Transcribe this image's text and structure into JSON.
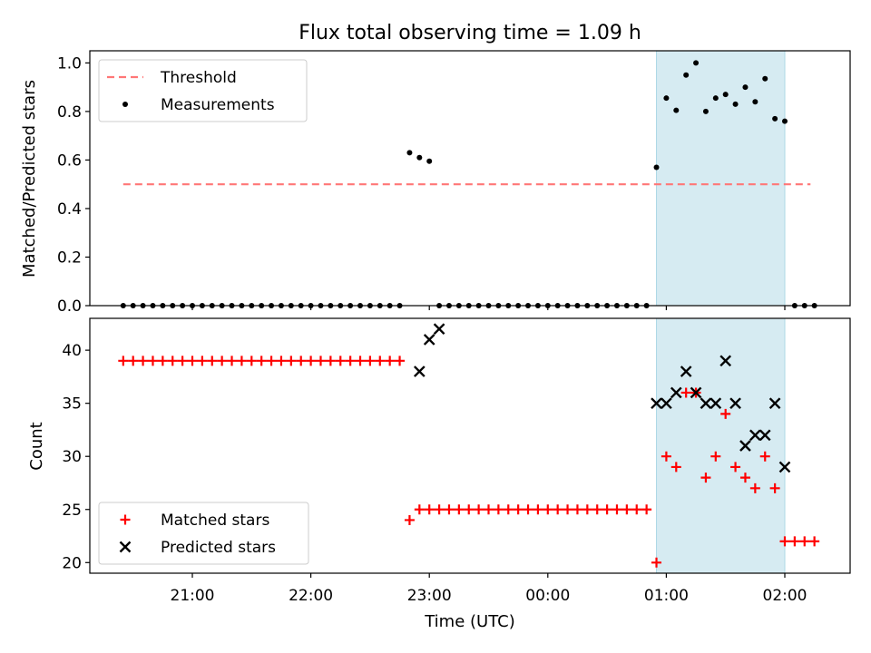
{
  "figure": {
    "title": "Flux total observing time = 1.09 h",
    "xlabel": "Time (UTC)",
    "x_ticks": [
      "21:00",
      "22:00",
      "23:00",
      "00:00",
      "01:00",
      "02:00"
    ]
  },
  "chart_data": [
    {
      "type": "scatter",
      "ylabel": "Matched/Predicted stars",
      "ylim": [
        0,
        1.05
      ],
      "y_ticks": [
        "0.0",
        "0.2",
        "0.4",
        "0.6",
        "0.8",
        "1.0"
      ],
      "legend_position": "top-left",
      "shaded_region": {
        "x_start": "00:55",
        "x_end": "02:00",
        "color": "#add8e6"
      },
      "threshold": {
        "name": "Threshold",
        "value": 0.5,
        "x_start": "20:25",
        "x_end": "02:13",
        "color": "#ff7777"
      },
      "series": [
        {
          "name": "Measurements",
          "color": "#000000",
          "x": [
            "20:25",
            "20:30",
            "20:35",
            "20:40",
            "20:45",
            "20:50",
            "20:55",
            "21:00",
            "21:05",
            "21:10",
            "21:15",
            "21:20",
            "21:25",
            "21:30",
            "21:35",
            "21:40",
            "21:45",
            "21:50",
            "21:55",
            "22:00",
            "22:05",
            "22:10",
            "22:15",
            "22:20",
            "22:25",
            "22:30",
            "22:35",
            "22:40",
            "22:45",
            "22:50",
            "22:55",
            "23:00",
            "23:05",
            "23:10",
            "23:15",
            "23:20",
            "23:25",
            "23:30",
            "23:35",
            "23:40",
            "23:45",
            "23:50",
            "23:55",
            "00:00",
            "00:05",
            "00:10",
            "00:15",
            "00:20",
            "00:25",
            "00:30",
            "00:35",
            "00:40",
            "00:45",
            "00:50",
            "00:55",
            "01:00",
            "01:05",
            "01:10",
            "01:15",
            "01:20",
            "01:25",
            "01:30",
            "01:35",
            "01:40",
            "01:45",
            "01:50",
            "01:55",
            "02:00",
            "02:05",
            "02:10",
            "02:15"
          ],
          "y": [
            0,
            0,
            0,
            0,
            0,
            0,
            0,
            0,
            0,
            0,
            0,
            0,
            0,
            0,
            0,
            0,
            0,
            0,
            0,
            0,
            0,
            0,
            0,
            0,
            0,
            0,
            0,
            0,
            0,
            0.63,
            0.61,
            0.595,
            0,
            0,
            0,
            0,
            0,
            0,
            0,
            0,
            0,
            0,
            0,
            0,
            0,
            0,
            0,
            0,
            0,
            0,
            0,
            0,
            0,
            0,
            0.57,
            0.855,
            0.805,
            0.95,
            1.0,
            0.8,
            0.855,
            0.87,
            0.83,
            0.9,
            0.84,
            0.935,
            0.77,
            0.76,
            0,
            0,
            0
          ]
        }
      ]
    },
    {
      "type": "scatter",
      "ylabel": "Count",
      "ylim": [
        19,
        43
      ],
      "y_ticks": [
        "20",
        "25",
        "30",
        "35",
        "40"
      ],
      "legend_position": "bottom-left",
      "shaded_region": {
        "x_start": "00:55",
        "x_end": "02:00",
        "color": "#add8e6"
      },
      "series": [
        {
          "name": "Matched stars",
          "marker": "plus",
          "color": "#ff0000",
          "x": [
            "20:25",
            "20:30",
            "20:35",
            "20:40",
            "20:45",
            "20:50",
            "20:55",
            "21:00",
            "21:05",
            "21:10",
            "21:15",
            "21:20",
            "21:25",
            "21:30",
            "21:35",
            "21:40",
            "21:45",
            "21:50",
            "21:55",
            "22:00",
            "22:05",
            "22:10",
            "22:15",
            "22:20",
            "22:25",
            "22:30",
            "22:35",
            "22:40",
            "22:45",
            "22:50",
            "22:55",
            "23:00",
            "23:05",
            "23:10",
            "23:15",
            "23:20",
            "23:25",
            "23:30",
            "23:35",
            "23:40",
            "23:45",
            "23:50",
            "23:55",
            "00:00",
            "00:05",
            "00:10",
            "00:15",
            "00:20",
            "00:25",
            "00:30",
            "00:35",
            "00:40",
            "00:45",
            "00:50",
            "00:55",
            "01:00",
            "01:05",
            "01:10",
            "01:15",
            "01:20",
            "01:25",
            "01:30",
            "01:35",
            "01:40",
            "01:45",
            "01:50",
            "01:55",
            "02:00",
            "02:05",
            "02:10",
            "02:15"
          ],
          "y": [
            39,
            39,
            39,
            39,
            39,
            39,
            39,
            39,
            39,
            39,
            39,
            39,
            39,
            39,
            39,
            39,
            39,
            39,
            39,
            39,
            39,
            39,
            39,
            39,
            39,
            39,
            39,
            39,
            39,
            24,
            25,
            25,
            25,
            25,
            25,
            25,
            25,
            25,
            25,
            25,
            25,
            25,
            25,
            25,
            25,
            25,
            25,
            25,
            25,
            25,
            25,
            25,
            25,
            25,
            20,
            30,
            29,
            36,
            36,
            28,
            30,
            34,
            29,
            28,
            27,
            30,
            27,
            22,
            22,
            22,
            22
          ]
        },
        {
          "name": "Predicted stars",
          "marker": "x",
          "color": "#000000",
          "x": [
            "22:55",
            "23:00",
            "23:05",
            "00:55",
            "01:00",
            "01:05",
            "01:10",
            "01:15",
            "01:20",
            "01:25",
            "01:30",
            "01:35",
            "01:40",
            "01:45",
            "01:50",
            "01:55",
            "02:00"
          ],
          "y": [
            38,
            41,
            42,
            35,
            35,
            36,
            38,
            36,
            35,
            35,
            39,
            35,
            31,
            32,
            32,
            35,
            29
          ]
        }
      ]
    }
  ]
}
